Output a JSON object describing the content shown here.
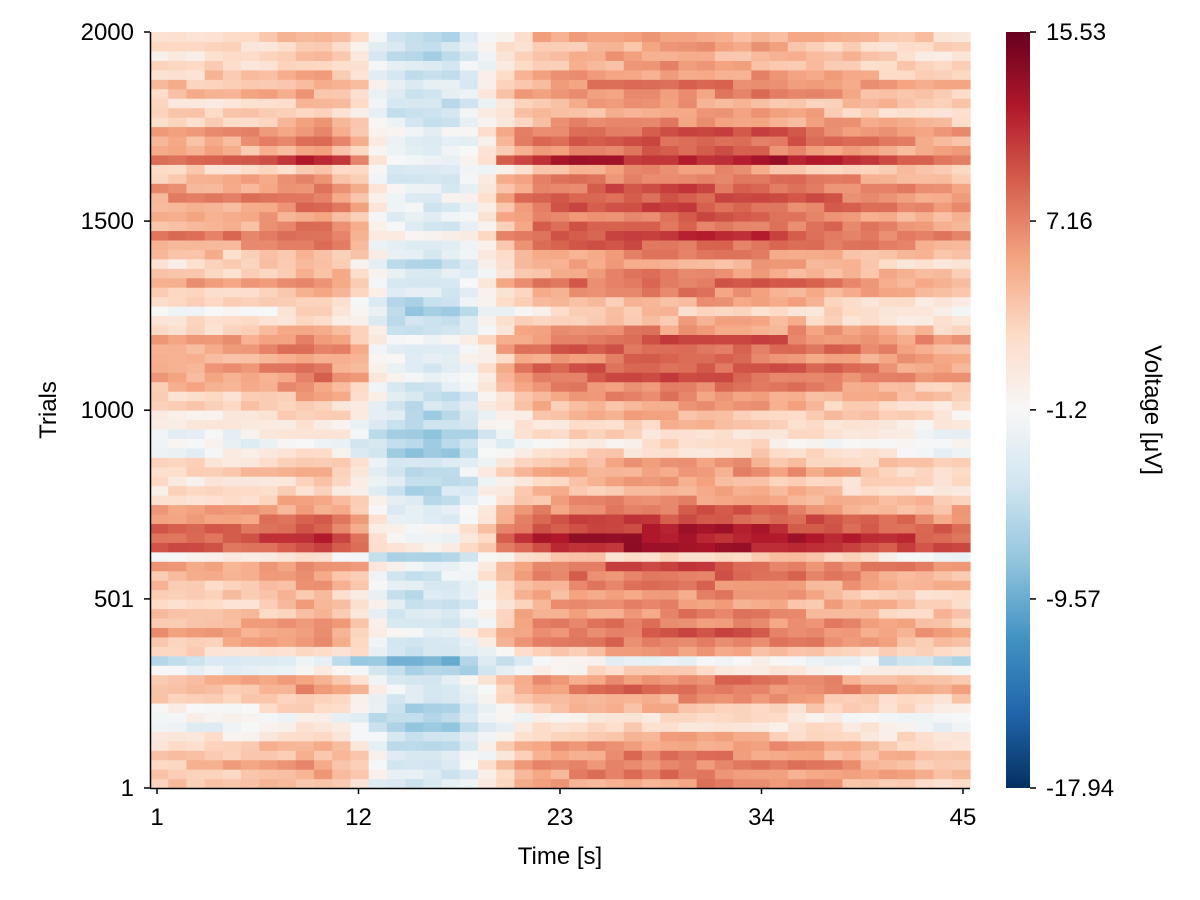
{
  "chart_data": {
    "type": "heatmap",
    "title": "",
    "xlabel": "Time [s]",
    "ylabel": "Trials",
    "colorbar_label": "Voltage [μV]",
    "colormap": "RdBu (reversed: blue = negative, red = positive)",
    "colormap_stops": [
      "#053061",
      "#2166ac",
      "#4393c3",
      "#92c5de",
      "#d1e5f0",
      "#f7f7f7",
      "#fddbc7",
      "#f4a582",
      "#d6604d",
      "#b2182b",
      "#67001f"
    ],
    "x_range": [
      1,
      45
    ],
    "y_range": [
      1,
      2000
    ],
    "x_ticks": [
      1,
      12,
      23,
      34,
      45
    ],
    "y_ticks": [
      1,
      501,
      1000,
      1500,
      2000
    ],
    "x_tick_labels": [
      "1",
      "12",
      "23",
      "34",
      "45"
    ],
    "y_tick_labels": [
      "1",
      "501",
      "1000",
      "1500",
      "2000"
    ],
    "value_range": [
      -17.94,
      15.53
    ],
    "colorbar_ticks": [
      -17.94,
      -9.57,
      -1.2,
      7.16,
      15.53
    ],
    "colorbar_tick_labels": [
      "-17.94",
      "-9.57",
      "-1.2",
      "7.16",
      "15.53"
    ],
    "grid": false,
    "colorbar_position": "right",
    "n_time_bins": 45,
    "n_trial_bins": 80,
    "time_profile": {
      "times": [
        1,
        6,
        8,
        9,
        10,
        11,
        12,
        13,
        14,
        15,
        16,
        17,
        18,
        19,
        20,
        21,
        22,
        24,
        27,
        30,
        33,
        36,
        40,
        43,
        45
      ],
      "voltages": [
        2.0,
        2.5,
        4.0,
        5.5,
        6.0,
        4.0,
        1.5,
        -4.0,
        -8.0,
        -9.5,
        -10.0,
        -9.5,
        -7.0,
        -3.0,
        0.5,
        4.0,
        6.0,
        7.5,
        8.5,
        9.0,
        8.5,
        7.0,
        4.5,
        2.5,
        2.0
      ]
    },
    "trial_profile": {
      "trials": [
        1,
        60,
        120,
        175,
        240,
        275,
        300,
        330,
        370,
        410,
        450,
        500,
        560,
        600,
        620,
        640,
        700,
        800,
        850,
        900,
        950,
        1000,
        1060,
        1100,
        1140,
        1180,
        1220,
        1260,
        1300,
        1340,
        1380,
        1420,
        1460,
        1500,
        1560,
        1600,
        1640,
        1660,
        1700,
        1720,
        1760,
        1800,
        1850,
        1900,
        1950,
        2000
      ],
      "offsets": [
        1.0,
        3.0,
        1.0,
        -4.0,
        1.0,
        4.0,
        1.0,
        -8.0,
        2.0,
        4.0,
        2.0,
        1.0,
        3.0,
        5.0,
        -5.0,
        9.0,
        6.0,
        -1.0,
        2.0,
        -4.0,
        -2.0,
        0.0,
        2.5,
        5.0,
        3.0,
        5.0,
        1.0,
        -2.0,
        1.0,
        4.0,
        0.0,
        2.5,
        6.0,
        3.0,
        5.0,
        4.0,
        0.5,
        8.0,
        1.0,
        6.0,
        2.0,
        0.0,
        3.0,
        1.0,
        0.0,
        1.0
      ]
    }
  }
}
